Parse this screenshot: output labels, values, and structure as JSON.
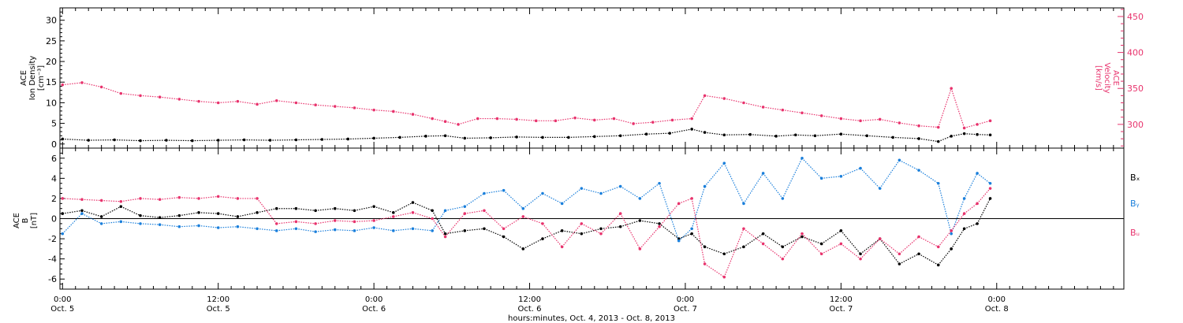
{
  "chart_data": [
    {
      "type": "scatter",
      "panel": "top",
      "ylabel_left": [
        "ACE",
        "Ion Density",
        "[cm⁻³]"
      ],
      "ylabel_right": [
        "ACE",
        "Velocity",
        "[km/s]"
      ],
      "ylim_left": [
        -1,
        33
      ],
      "yticks_left": [
        0,
        5,
        10,
        15,
        20,
        25,
        30
      ],
      "ylim_right": [
        267,
        462
      ],
      "yticks_right": [
        300,
        350,
        400,
        450
      ],
      "series": [
        {
          "key": "density",
          "color": "#000000",
          "axis": "left",
          "x": [
            0,
            2,
            4,
            6,
            8,
            10,
            12,
            14,
            16,
            18,
            20,
            22,
            24,
            26,
            28,
            29.5,
            31,
            33,
            35,
            37,
            39,
            41,
            43,
            45,
            46.8,
            48.5,
            49.5,
            51,
            53,
            55,
            56.5,
            58,
            60,
            62,
            64,
            66,
            67.5,
            68.5,
            69.5,
            70.5,
            71.5
          ],
          "y": [
            1.2,
            0.9,
            1.0,
            0.8,
            0.9,
            0.8,
            0.9,
            1.0,
            0.9,
            1.0,
            1.1,
            1.2,
            1.4,
            1.6,
            1.9,
            2.0,
            1.4,
            1.5,
            1.7,
            1.6,
            1.6,
            1.8,
            2.0,
            2.4,
            2.6,
            3.6,
            2.8,
            2.2,
            2.3,
            1.9,
            2.2,
            2.0,
            2.4,
            2.0,
            1.6,
            1.3,
            0.6,
            1.9,
            2.5,
            2.3,
            2.2
          ]
        },
        {
          "key": "velocity",
          "color": "#e8336d",
          "axis": "right",
          "x": [
            0,
            1.5,
            3,
            4.5,
            6,
            7.5,
            9,
            10.5,
            12,
            13.5,
            15,
            16.5,
            18,
            19.5,
            21,
            22.5,
            24,
            25.5,
            27,
            28.5,
            29.5,
            30.5,
            32,
            33.5,
            35,
            36.5,
            38,
            39.5,
            41,
            42.5,
            44,
            45.5,
            47,
            48.5,
            49.5,
            51,
            52.5,
            54,
            55.5,
            57,
            58.5,
            60,
            61.5,
            63,
            64.5,
            66,
            67.5,
            68.5,
            69.5,
            70.5,
            71.5
          ],
          "y": [
            355,
            358,
            352,
            343,
            340,
            338,
            335,
            332,
            330,
            332,
            328,
            333,
            330,
            327,
            325,
            323,
            320,
            318,
            314,
            308,
            304,
            300,
            308,
            308,
            307,
            305,
            305,
            309,
            306,
            308,
            301,
            303,
            306,
            308,
            340,
            336,
            330,
            324,
            320,
            316,
            312,
            308,
            305,
            307,
            302,
            298,
            296,
            350,
            295,
            300,
            305
          ]
        }
      ]
    },
    {
      "type": "scatter",
      "panel": "bottom",
      "ylabel_left": [
        "ACE",
        "B",
        "[nT]"
      ],
      "ylim_left": [
        -7,
        7
      ],
      "yticks_left": [
        -6,
        -4,
        -2,
        0,
        2,
        4,
        6
      ],
      "zero_line": true,
      "series": [
        {
          "key": "bx",
          "name": "Bₓ",
          "color": "#000000",
          "axis": "left",
          "x": [
            0,
            1.5,
            3,
            4.5,
            6,
            7.5,
            9,
            10.5,
            12,
            13.5,
            15,
            16.5,
            18,
            19.5,
            21,
            22.5,
            24,
            25.5,
            27,
            28.5,
            29.5,
            31,
            32.5,
            34,
            35.5,
            37,
            38.5,
            40,
            41.5,
            43,
            44.5,
            46,
            47.5,
            48.5,
            49.5,
            51,
            52.5,
            54,
            55.5,
            57,
            58.5,
            60,
            61.5,
            63,
            64.5,
            66,
            67.5,
            68.5,
            69.5,
            70.5,
            71.5
          ],
          "y": [
            0.5,
            0.8,
            0.2,
            1.2,
            0.3,
            0.1,
            0.3,
            0.6,
            0.5,
            0.2,
            0.6,
            1.0,
            1.0,
            0.8,
            1.0,
            0.8,
            1.2,
            0.6,
            1.6,
            0.8,
            -1.5,
            -1.2,
            -1.0,
            -1.8,
            -3.0,
            -2.0,
            -1.2,
            -1.5,
            -1.0,
            -0.8,
            -0.2,
            -0.5,
            -2.0,
            -1.5,
            -2.8,
            -3.5,
            -2.8,
            -1.5,
            -2.8,
            -1.8,
            -2.5,
            -1.2,
            -3.5,
            -2.0,
            -4.5,
            -3.5,
            -4.6,
            -3.0,
            -1.0,
            -0.5,
            2.0
          ]
        },
        {
          "key": "by",
          "name": "Bᵧ",
          "color": "#1a7fdb",
          "axis": "left",
          "x": [
            0,
            1.5,
            3,
            4.5,
            6,
            7.5,
            9,
            10.5,
            12,
            13.5,
            15,
            16.5,
            18,
            19.5,
            21,
            22.5,
            24,
            25.5,
            27,
            28.5,
            29.5,
            31,
            32.5,
            34,
            35.5,
            37,
            38.5,
            40,
            41.5,
            43,
            44.5,
            46,
            47.5,
            48.5,
            49.5,
            51,
            52.5,
            54,
            55.5,
            57,
            58.5,
            60,
            61.5,
            63,
            64.5,
            66,
            67.5,
            68.5,
            69.5,
            70.5,
            71.5
          ],
          "y": [
            -1.5,
            0.5,
            -0.5,
            -0.3,
            -0.5,
            -0.6,
            -0.8,
            -0.7,
            -0.9,
            -0.8,
            -1.0,
            -1.2,
            -1.0,
            -1.3,
            -1.1,
            -1.2,
            -0.9,
            -1.2,
            -1.0,
            -1.2,
            0.8,
            1.2,
            2.5,
            2.8,
            1.0,
            2.5,
            1.5,
            3.0,
            2.5,
            3.2,
            2.0,
            3.5,
            -2.2,
            -1.0,
            3.2,
            5.5,
            1.5,
            4.5,
            2.0,
            6.0,
            4.0,
            4.2,
            5.0,
            3.0,
            5.8,
            4.8,
            3.5,
            -1.5,
            2.0,
            4.5,
            3.5
          ]
        },
        {
          "key": "bz",
          "name": "Bᵤ",
          "color": "#e8336d",
          "axis": "left",
          "x": [
            0,
            1.5,
            3,
            4.5,
            6,
            7.5,
            9,
            10.5,
            12,
            13.5,
            15,
            16.5,
            18,
            19.5,
            21,
            22.5,
            24,
            25.5,
            27,
            28.5,
            29.5,
            31,
            32.5,
            34,
            35.5,
            37,
            38.5,
            40,
            41.5,
            43,
            44.5,
            46,
            47.5,
            48.5,
            49.5,
            51,
            52.5,
            54,
            55.5,
            57,
            58.5,
            60,
            61.5,
            63,
            64.5,
            66,
            67.5,
            68.5,
            69.5,
            70.5,
            71.5
          ],
          "y": [
            2.0,
            1.9,
            1.8,
            1.7,
            2.0,
            1.9,
            2.1,
            2.0,
            2.2,
            2.0,
            2.0,
            -0.5,
            -0.3,
            -0.5,
            -0.2,
            -0.3,
            -0.2,
            0.2,
            0.6,
            0.0,
            -1.8,
            0.5,
            0.8,
            -1.0,
            0.2,
            -0.5,
            -2.8,
            -0.5,
            -1.5,
            0.5,
            -3.0,
            -0.8,
            1.5,
            2.0,
            -4.5,
            -5.8,
            -1.0,
            -2.5,
            -4.0,
            -1.5,
            -3.5,
            -2.5,
            -4.0,
            -2.0,
            -3.5,
            -1.8,
            -2.8,
            -1.2,
            0.5,
            1.5,
            3.0
          ]
        }
      ]
    }
  ],
  "x_axis": {
    "xlim_hours": [
      -0.2,
      81.8
    ],
    "major_ticks": [
      0,
      12,
      24,
      36,
      48,
      60,
      72
    ],
    "minor_step_hours": 1,
    "tick_labels": [
      {
        "time": "0:00",
        "date": "Oct. 5"
      },
      {
        "time": "12:00",
        "date": "Oct. 5"
      },
      {
        "time": "0:00",
        "date": "Oct. 6"
      },
      {
        "time": "12:00",
        "date": "Oct. 6"
      },
      {
        "time": "0:00",
        "date": "Oct. 7"
      },
      {
        "time": "12:00",
        "date": "Oct. 7"
      },
      {
        "time": "0:00",
        "date": "Oct. 8"
      }
    ],
    "xlabel": "hours:minutes, Oct.  4, 2013 - Oct.  8, 2013"
  }
}
